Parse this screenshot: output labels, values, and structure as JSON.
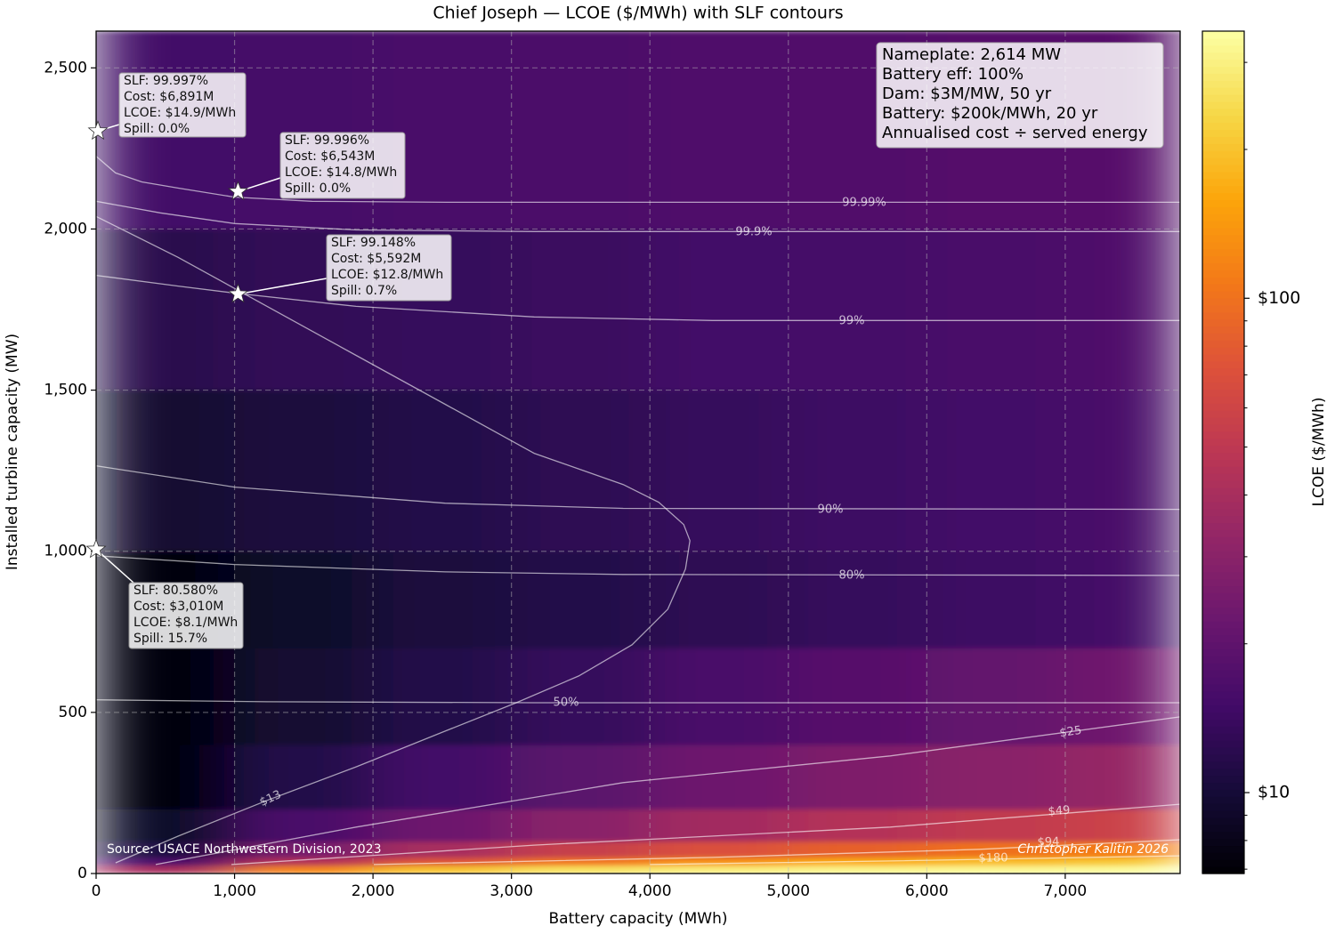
{
  "chart_data": {
    "type": "heatmap",
    "title": "Chief Joseph — LCOE ($/MWh) with SLF contours",
    "x_label": "Battery capacity (MWh)",
    "y_label": "Installed turbine capacity (MW)",
    "xlim": [
      0,
      7830
    ],
    "ylim": [
      0,
      2614
    ],
    "xticks": [
      0,
      {
        "value": 1000,
        "label": "1,000"
      },
      {
        "value": 2000,
        "label": "2,000"
      },
      {
        "value": 3000,
        "label": "3,000"
      },
      {
        "value": 4000,
        "label": "4,000"
      },
      {
        "value": 5000,
        "label": "5,000"
      },
      {
        "value": 6000,
        "label": "6,000"
      },
      {
        "value": 7000,
        "label": "7,000"
      }
    ],
    "yticks": [
      0,
      500,
      {
        "value": 1000,
        "label": "1,000"
      },
      {
        "value": 1500,
        "label": "1,500"
      },
      {
        "value": 2000,
        "label": "2,000"
      },
      {
        "value": 2500,
        "label": "2,500"
      }
    ],
    "grid": true,
    "colormap": "inferno",
    "x_edges": [
      0,
      1000,
      2000,
      3000,
      4000,
      5000,
      6000,
      7000,
      7830
    ],
    "y_edges": [
      0,
      25,
      50,
      100,
      200,
      400,
      700,
      1000,
      1500,
      2000,
      2614
    ],
    "z": [
      [
        40,
        120,
        200,
        260,
        290,
        310,
        320,
        330
      ],
      [
        16,
        45,
        75,
        105,
        135,
        165,
        190,
        210
      ],
      [
        11,
        25,
        40,
        55,
        70,
        85,
        100,
        112
      ],
      [
        9,
        16,
        23,
        30,
        38,
        45,
        52,
        58
      ],
      [
        7.5,
        11.5,
        15,
        19,
        23,
        27,
        30,
        34
      ],
      [
        7,
        9.5,
        11.5,
        13.5,
        16,
        18.5,
        21,
        23.5
      ],
      [
        7.5,
        9,
        10.5,
        11.5,
        12.5,
        13.5,
        14.5,
        15.5
      ],
      [
        9.5,
        10.5,
        11.5,
        12.5,
        13.5,
        14.5,
        15,
        16
      ],
      [
        12,
        13,
        13.5,
        14,
        15,
        15.5,
        16,
        17
      ],
      [
        15,
        15.5,
        16,
        16.5,
        17,
        17.5,
        18,
        18.5
      ]
    ],
    "colorbar": {
      "label": "LCOE ($/MWh)",
      "lim": [
        6.86,
        347
      ],
      "log": true,
      "ticks": [
        {
          "value": 10,
          "label": "$10"
        },
        {
          "value": 100,
          "label": "$100"
        }
      ],
      "minor_ticks": [
        7,
        8,
        9,
        20,
        30,
        40,
        50,
        60,
        70,
        80,
        90,
        200,
        300
      ]
    },
    "contours": [
      {
        "label": "99.99%",
        "x": [
          0,
          140,
          330,
          590,
          1000,
          1560,
          2530,
          7830
        ],
        "y": [
          2226,
          2174,
          2146,
          2127,
          2099,
          2086,
          2083,
          2083
        ]
      },
      {
        "label": "99.9%",
        "x": [
          0,
          463,
          1000,
          1878,
          3164,
          7830
        ],
        "y": [
          2086,
          2050,
          2017,
          1997,
          1992,
          1992
        ]
      },
      {
        "label": "99%",
        "x": [
          0,
          592,
          1000,
          1878,
          3164,
          4450,
          7830
        ],
        "y": [
          1856,
          1823,
          1801,
          1760,
          1727,
          1716,
          1716
        ]
      },
      {
        "label": "90%",
        "x": [
          0,
          1000,
          2521,
          3807,
          7830
        ],
        "y": [
          1265,
          1199,
          1149,
          1133,
          1130
        ]
      },
      {
        "label": "80%",
        "x": [
          0,
          1000,
          2521,
          3807,
          7830
        ],
        "y": [
          986,
          959,
          936,
          928,
          925
        ]
      },
      {
        "label": "50%",
        "x": [
          0,
          1235,
          3164,
          7830
        ],
        "y": [
          539,
          533,
          530,
          530
        ]
      },
      {
        "label": "$13",
        "x": [
          0,
          592,
          1235,
          1878,
          2521,
          3164,
          3807,
          4064,
          4244,
          4289,
          4257,
          4129,
          3871,
          3486,
          3035,
          2521,
          1878,
          1235,
          592,
          141
        ],
        "y": [
          2039,
          1912,
          1760,
          1608,
          1456,
          1304,
          1207,
          1152,
          1083,
          1033,
          945,
          820,
          710,
          613,
          530,
          442,
          331,
          227,
          116,
          33
        ]
      },
      {
        "label": "$25",
        "x": [
          431,
          1878,
          3807,
          5736,
          7830
        ],
        "y": [
          28,
          144,
          282,
          365,
          486
        ]
      },
      {
        "label": "$49",
        "x": [
          977,
          3164,
          5736,
          7830
        ],
        "y": [
          28,
          88,
          144,
          215
        ]
      },
      {
        "label": "$94",
        "x": [
          2006,
          4450,
          6379,
          7830
        ],
        "y": [
          28,
          50,
          75,
          105
        ]
      },
      {
        "label": "$180",
        "x": [
          4000,
          5736,
          7830
        ],
        "y": [
          28,
          39,
          55
        ]
      }
    ],
    "points": {
      "x": [
        13,
        1025,
        1025,
        0
      ],
      "y": [
        2304,
        2116,
        1798,
        1006
      ],
      "annotations": [
        [
          "SLF: 99.997%",
          "Cost: $6,891M",
          "LCOE: $14.9/MWh",
          "Spill: 0.0%"
        ],
        [
          "SLF: 99.996%",
          "Cost: $6,543M",
          "LCOE: $14.8/MWh",
          "Spill: 0.0%"
        ],
        [
          "SLF: 99.148%",
          "Cost: $5,592M",
          "LCOE: $12.8/MWh",
          "Spill: 0.7%"
        ],
        [
          "SLF: 80.580%",
          "Cost: $3,010M",
          "LCOE: $8.1/MWh",
          "Spill: 15.7%"
        ]
      ]
    },
    "info_box": [
      "Nameplate: 2,614 MW",
      "Battery eff: 100%",
      "Dam: $3M/MW, 50 yr",
      "Battery: $200k/MWh, 20 yr",
      "Annualised cost ÷ served energy"
    ],
    "source": "Source: USACE Northwestern Division, 2023",
    "credit": "Christopher Kalitin 2026"
  }
}
